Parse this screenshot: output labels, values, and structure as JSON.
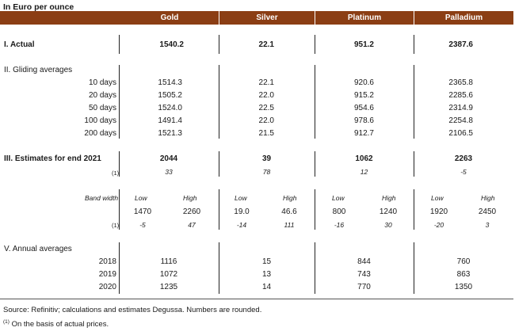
{
  "title": "In Euro per ounce",
  "columns": [
    "Gold",
    "Silver",
    "Platinum",
    "Palladium"
  ],
  "actual": {
    "label": "I. Actual",
    "values": [
      "1540.2",
      "22.1",
      "951.2",
      "2387.6"
    ]
  },
  "gliding": {
    "label": "II. Gliding averages",
    "rows": [
      {
        "label": "10 days",
        "values": [
          "1514.3",
          "22.1",
          "920.6",
          "2365.8"
        ]
      },
      {
        "label": "20 days",
        "values": [
          "1505.2",
          "22.0",
          "915.2",
          "2285.6"
        ]
      },
      {
        "label": "50 days",
        "values": [
          "1524.0",
          "22.5",
          "954.6",
          "2314.9"
        ]
      },
      {
        "label": "100 days",
        "values": [
          "1491.4",
          "22.0",
          "978.6",
          "2254.8"
        ]
      },
      {
        "label": "200 days",
        "values": [
          "1521.3",
          "21.5",
          "912.7",
          "2106.5"
        ]
      }
    ]
  },
  "estimates": {
    "label": "III. Estimates for end 2021",
    "marker": "(1)",
    "values": [
      "2044",
      "39",
      "1062",
      "2263"
    ],
    "changes": [
      "33",
      "78",
      "12",
      "-5"
    ]
  },
  "band": {
    "label": "Band width",
    "marker": "(1)",
    "low_label": "Low",
    "high_label": "High",
    "groups": [
      {
        "low": "1470",
        "high": "2260",
        "low_change": "-5",
        "high_change": "47"
      },
      {
        "low": "19.0",
        "high": "46.6",
        "low_change": "-14",
        "high_change": "111"
      },
      {
        "low": "800",
        "high": "1240",
        "low_change": "-16",
        "high_change": "30"
      },
      {
        "low": "1920",
        "high": "2450",
        "low_change": "-20",
        "high_change": "3"
      }
    ]
  },
  "annual": {
    "label": "V. Annual averages",
    "rows": [
      {
        "label": "2018",
        "values": [
          "1116",
          "15",
          "844",
          "760"
        ]
      },
      {
        "label": "2019",
        "values": [
          "1072",
          "13",
          "743",
          "863"
        ]
      },
      {
        "label": "2020",
        "values": [
          "1235",
          "14",
          "770",
          "1350"
        ]
      }
    ]
  },
  "footer": {
    "source": "Source: Refinitiv; calculations and estimates Degussa. Numbers are rounded.",
    "note_marker": "(1)",
    "note": " On the basis of actual prices."
  },
  "colors": {
    "header_bg": "#8b3e14",
    "header_text": "#ffffff"
  }
}
